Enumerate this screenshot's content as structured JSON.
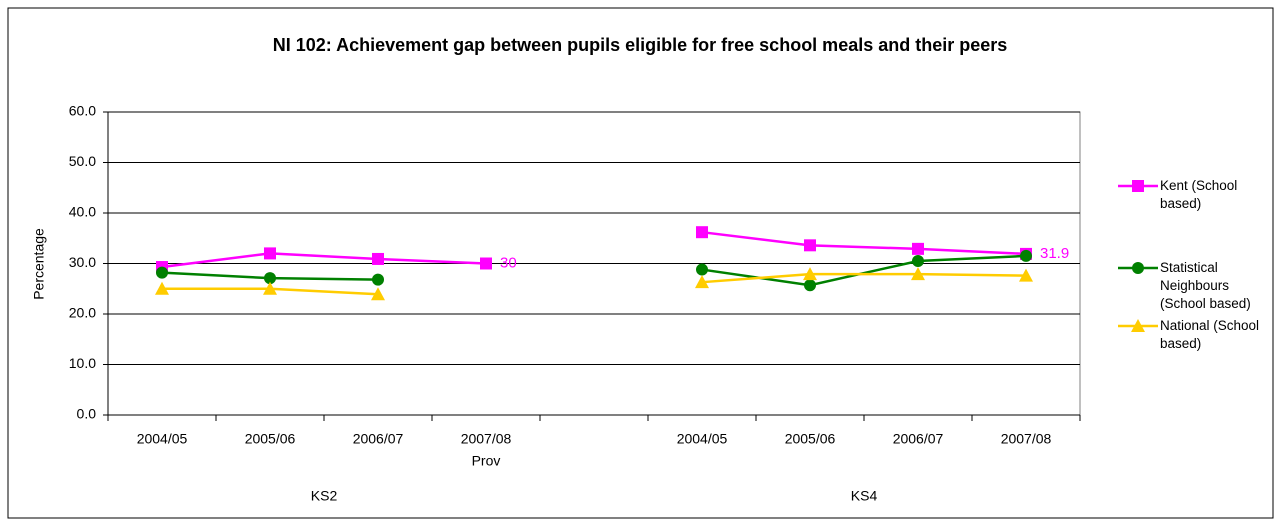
{
  "chart_data": {
    "type": "line",
    "title": "NI 102: Achievement gap between pupils eligible for free school meals and their peers",
    "y_label": "Percentage",
    "categories": [
      "2004/05",
      "2005/06",
      "2006/07",
      "2007/08",
      null,
      "2004/05",
      "2005/06",
      "2006/07",
      "2007/08"
    ],
    "category_sublabels": [
      null,
      null,
      null,
      "Prov",
      null,
      null,
      null,
      null,
      null
    ],
    "groups": [
      "KS2",
      "KS4"
    ],
    "series": [
      {
        "name": "Kent (School based)",
        "color": "#ff00ff",
        "marker": "square",
        "values": [
          29.3,
          32.0,
          30.9,
          30,
          null,
          36.2,
          33.6,
          32.9,
          31.9
        ],
        "value_labels": [
          null,
          null,
          null,
          "30",
          null,
          null,
          null,
          null,
          "31.9"
        ]
      },
      {
        "name": "Statistical Neighbours (School based)",
        "color": "#008000",
        "marker": "circle",
        "values": [
          28.2,
          27.1,
          26.8,
          null,
          null,
          28.8,
          25.7,
          30.5,
          31.5
        ]
      },
      {
        "name": "National (School based)",
        "color": "#ffcc00",
        "marker": "triangle",
        "values": [
          25.0,
          25.0,
          23.9,
          null,
          null,
          26.3,
          27.9,
          27.9,
          27.6
        ]
      }
    ],
    "ylim": [
      0,
      60
    ],
    "yticks": [
      {
        "value": 0,
        "label": "0.0"
      },
      {
        "value": 10,
        "label": "10.0"
      },
      {
        "value": 20,
        "label": "20.0"
      },
      {
        "value": 30,
        "label": "30.0"
      },
      {
        "value": 40,
        "label": "40.0"
      },
      {
        "value": 50,
        "label": "50.0"
      },
      {
        "value": 60,
        "label": "60.0"
      }
    ],
    "grid": true,
    "legend": "right"
  }
}
